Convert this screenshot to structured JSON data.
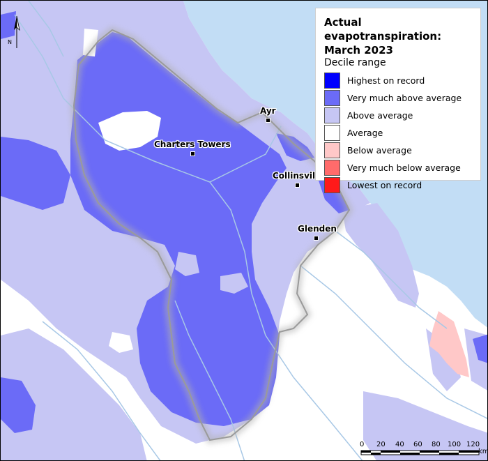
{
  "legend": {
    "title_line1": "Actual evapotranspiration:",
    "title_line2": "March 2023",
    "subtitle": "Decile range",
    "items": [
      {
        "label": "Highest on record",
        "color": "#0000ff"
      },
      {
        "label": "Very much above average",
        "color": "#6b6bf7"
      },
      {
        "label": "Above average",
        "color": "#c6c6f4"
      },
      {
        "label": "Average",
        "color": "#ffffff"
      },
      {
        "label": "Below average",
        "color": "#ffc8c8"
      },
      {
        "label": "Very much below average",
        "color": "#ff6b6b"
      },
      {
        "label": "Lowest on record",
        "color": "#ff1a1a"
      }
    ]
  },
  "places": {
    "ayr": "Ayr",
    "charters_towers": "Charters Towers",
    "collinsville": "Collinsvil",
    "glenden": "Glenden"
  },
  "north_arrow": "N",
  "scale_bar": {
    "ticks": [
      "0",
      "20",
      "40",
      "60",
      "80",
      "100",
      "120"
    ],
    "unit": "km"
  },
  "colors": {
    "sea": "#c2ddf5",
    "land_average": "#ffffff",
    "above_average": "#c6c6f4",
    "very_much_above": "#6b6bf7",
    "below_average": "#ffc8c8",
    "rivers": "#a8c8e6",
    "basin_outline": "#9a9a9a"
  }
}
